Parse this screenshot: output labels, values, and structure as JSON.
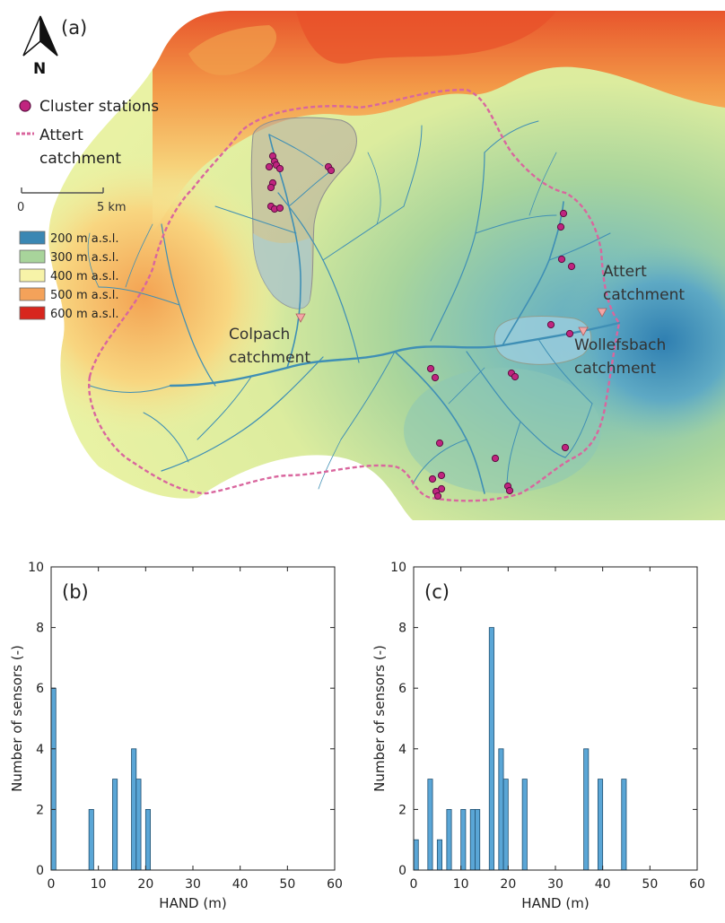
{
  "map": {
    "panel_label": "(a)",
    "north_label": "N",
    "legend": {
      "stations": "Cluster stations",
      "catchment_line1": "Attert",
      "catchment_line2": "catchment"
    },
    "scale": {
      "start": "0",
      "end": "5 km"
    },
    "elevation_legend": [
      {
        "label": "200 m a.s.l.",
        "color": "#3b87b3"
      },
      {
        "label": "300 m a.s.l.",
        "color": "#a8d49b"
      },
      {
        "label": "400 m a.s.l.",
        "color": "#f7f3a8"
      },
      {
        "label": "500 m a.s.l.",
        "color": "#f4a25a"
      },
      {
        "label": "600 m a.s.l.",
        "color": "#d7261e"
      }
    ],
    "labels": {
      "colpach_line1": "Colpach",
      "colpach_line2": "catchment",
      "wollefsbach_line1": "Wollefsbach",
      "wollefsbach_line2": "catchment",
      "attert_line1": "Attert",
      "attert_line2": "catchment"
    },
    "colors": {
      "boundary": "#d9669e",
      "station_fill": "#c0247f",
      "station_stroke": "#5a1040",
      "outlet": "#f4a6a6",
      "river": "#3f8fb5"
    }
  },
  "chart_data": [
    {
      "type": "bar",
      "panel_label": "(b)",
      "xlabel": "HAND (m)",
      "ylabel": "Number of sensors (-)",
      "xlim": [
        0,
        60
      ],
      "ylim": [
        0,
        10
      ],
      "xticks": [
        0,
        10,
        20,
        30,
        40,
        50,
        60
      ],
      "yticks": [
        0,
        2,
        4,
        6,
        8,
        10
      ],
      "bin_width": 1,
      "bins": [
        {
          "x": 1,
          "count": 6
        },
        {
          "x": 9,
          "count": 2
        },
        {
          "x": 14,
          "count": 3
        },
        {
          "x": 18,
          "count": 4
        },
        {
          "x": 19,
          "count": 3
        },
        {
          "x": 21,
          "count": 2
        }
      ],
      "bar_color": "#5aa6d6"
    },
    {
      "type": "bar",
      "panel_label": "(c)",
      "xlabel": "HAND (m)",
      "ylabel": "Number of sensors (-)",
      "xlim": [
        0,
        60
      ],
      "ylim": [
        0,
        10
      ],
      "xticks": [
        0,
        10,
        20,
        30,
        40,
        50,
        60
      ],
      "yticks": [
        0,
        2,
        4,
        6,
        8,
        10
      ],
      "bin_width": 1,
      "bins": [
        {
          "x": 1,
          "count": 1
        },
        {
          "x": 4,
          "count": 3
        },
        {
          "x": 6,
          "count": 1
        },
        {
          "x": 8,
          "count": 2
        },
        {
          "x": 11,
          "count": 2
        },
        {
          "x": 13,
          "count": 2
        },
        {
          "x": 14,
          "count": 2
        },
        {
          "x": 17,
          "count": 8
        },
        {
          "x": 19,
          "count": 4
        },
        {
          "x": 20,
          "count": 3
        },
        {
          "x": 24,
          "count": 3
        },
        {
          "x": 37,
          "count": 4
        },
        {
          "x": 40,
          "count": 3
        },
        {
          "x": 45,
          "count": 3
        }
      ],
      "bar_color": "#5aa6d6"
    }
  ]
}
